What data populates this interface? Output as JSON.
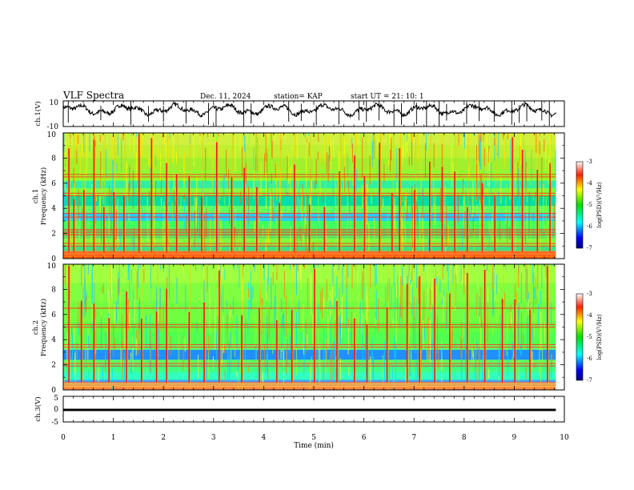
{
  "chart_data": {
    "type": "heatmap",
    "header": {
      "title": "VLF Spectra",
      "date": "Dec. 11, 2024",
      "station": "station= KAP",
      "start": "start  UT  =   21: 10: 1"
    },
    "x_axis": {
      "label": "Time  (min)",
      "range": [
        0,
        10
      ],
      "ticks": [
        "0",
        "1",
        "2",
        "3",
        "4",
        "5",
        "6",
        "7",
        "8",
        "9",
        "10"
      ],
      "data_end_min": 9.83
    },
    "ch1_waveform": {
      "ylabel": "ch.1(V)",
      "range": [
        -10,
        10
      ],
      "ticks": [
        "10",
        "-10"
      ],
      "mean_v": 3,
      "spike_times_min": [
        0.1,
        0.75,
        1.35,
        1.7,
        2.0,
        2.45,
        2.9,
        3.05,
        3.6,
        3.75,
        4.5,
        4.75,
        5.05,
        5.5,
        5.9,
        6.05,
        6.3,
        6.6,
        6.75,
        7.05,
        7.25,
        7.5,
        7.65,
        8.05,
        8.3,
        8.6,
        8.95,
        9.1,
        9.25,
        9.55,
        9.7
      ]
    },
    "ch1_spectrogram": {
      "ylabel_line1": "ch.1",
      "ylabel_line2": "Frequency  (kHz)",
      "freq_range_khz": [
        0,
        10
      ],
      "ticks": [
        "0",
        "2",
        "4",
        "6",
        "8",
        "10"
      ],
      "colorbar": {
        "label": "log(PSD)(V²/Hz)",
        "range": [
          -7,
          -3
        ],
        "ticks": [
          "-3",
          "-4",
          "-5",
          "-6",
          "-7"
        ]
      },
      "line_freqs_khz": [
        0.1,
        0.3,
        0.5,
        1.0,
        1.2,
        1.9,
        2.1,
        2.3,
        3.3,
        3.6,
        5.0,
        5.2,
        6.5,
        6.7
      ],
      "sferic_times_min": [
        0.1,
        0.2,
        0.4,
        0.6,
        0.8,
        1.0,
        1.2,
        1.5,
        1.75,
        2.05,
        2.25,
        2.5,
        2.75,
        3.05,
        3.35,
        3.6,
        3.85,
        4.3,
        4.6,
        4.9,
        5.2,
        5.5,
        5.8,
        6.0,
        6.3,
        6.55,
        6.7,
        7.0,
        7.3,
        7.55,
        7.8,
        8.05,
        8.35,
        8.6,
        8.95,
        9.15,
        9.45,
        9.7
      ]
    },
    "ch2_spectrogram": {
      "ylabel_line1": "ch.2",
      "ylabel_line2": "Frequency  (kHz)",
      "freq_range_khz": [
        0,
        10
      ],
      "ticks": [
        "0",
        "2",
        "4",
        "6",
        "8",
        "10"
      ],
      "colorbar": {
        "label": "log(PSD)(V²/Hz)",
        "range": [
          -7,
          -3
        ],
        "ticks": [
          "-3",
          "-4",
          "-5",
          "-6",
          "-7"
        ]
      },
      "line_freqs_khz": [
        0.4,
        0.6,
        1.9,
        2.1,
        3.4,
        3.6,
        5.0,
        5.2,
        6.5
      ],
      "sferic_times_min": [
        0.1,
        0.35,
        0.6,
        0.9,
        1.25,
        1.55,
        1.85,
        2.05,
        2.5,
        2.8,
        3.1,
        3.55,
        3.9,
        4.25,
        4.55,
        5.0,
        5.45,
        5.8,
        6.05,
        6.45,
        6.85,
        7.1,
        7.4,
        7.7,
        8.05,
        8.4,
        8.75,
        9.0,
        9.3,
        9.65
      ]
    },
    "ch3_waveform": {
      "ylabel": "ch.3(V)",
      "range": [
        -5,
        5
      ],
      "ticks": [
        "5",
        "0",
        "-5"
      ],
      "level_v": -0.3,
      "thickness_v": 0.9
    }
  }
}
